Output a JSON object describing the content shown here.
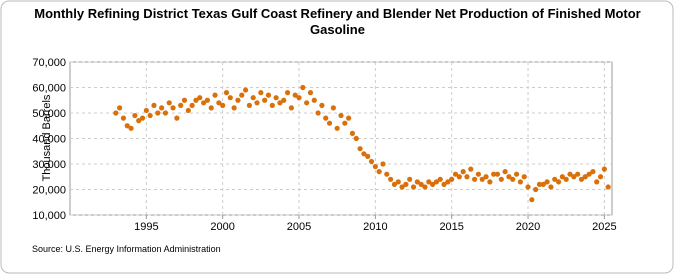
{
  "chart_data": {
    "type": "scatter",
    "title": "Monthly Refining District Texas Gulf Coast Refinery and Blender Net Production of Finished Motor Gasoline",
    "y_label": "Thousand Barrels",
    "source": "Source: U.S. Energy Information Administration",
    "color": "#d9700a",
    "xlim": [
      1990,
      2025.5
    ],
    "xticks": [
      1995,
      2000,
      2005,
      2010,
      2015,
      2020,
      2025
    ],
    "ylim": [
      10000,
      70000
    ],
    "yticks": [
      {
        "value": 10000,
        "label": "10,000"
      },
      {
        "value": 20000,
        "label": "20,000"
      },
      {
        "value": 30000,
        "label": "30,000"
      },
      {
        "value": 40000,
        "label": "40,000"
      },
      {
        "value": 50000,
        "label": "50,000"
      },
      {
        "value": 60000,
        "label": "60,000"
      },
      {
        "value": 70000,
        "label": "70,000"
      }
    ],
    "grid": true,
    "x": [
      1993.0,
      1993.25,
      1993.5,
      1993.75,
      1994.0,
      1994.25,
      1994.5,
      1994.75,
      1995.0,
      1995.25,
      1995.5,
      1995.75,
      1996.0,
      1996.25,
      1996.5,
      1996.75,
      1997.0,
      1997.25,
      1997.5,
      1997.75,
      1998.0,
      1998.25,
      1998.5,
      1998.75,
      1999.0,
      1999.25,
      1999.5,
      1999.75,
      2000.0,
      2000.25,
      2000.5,
      2000.75,
      2001.0,
      2001.25,
      2001.5,
      2001.75,
      2002.0,
      2002.25,
      2002.5,
      2002.75,
      2003.0,
      2003.25,
      2003.5,
      2003.75,
      2004.0,
      2004.25,
      2004.5,
      2004.75,
      2005.0,
      2005.25,
      2005.5,
      2005.75,
      2006.0,
      2006.25,
      2006.5,
      2006.75,
      2007.0,
      2007.25,
      2007.5,
      2007.75,
      2008.0,
      2008.25,
      2008.5,
      2008.75,
      2009.0,
      2009.25,
      2009.5,
      2009.75,
      2010.0,
      2010.25,
      2010.5,
      2010.75,
      2011.0,
      2011.25,
      2011.5,
      2011.75,
      2012.0,
      2012.25,
      2012.5,
      2012.75,
      2013.0,
      2013.25,
      2013.5,
      2013.75,
      2014.0,
      2014.25,
      2014.5,
      2014.75,
      2015.0,
      2015.25,
      2015.5,
      2015.75,
      2016.0,
      2016.25,
      2016.5,
      2016.75,
      2017.0,
      2017.25,
      2017.5,
      2017.75,
      2018.0,
      2018.25,
      2018.5,
      2018.75,
      2019.0,
      2019.25,
      2019.5,
      2019.75,
      2020.0,
      2020.25,
      2020.5,
      2020.75,
      2021.0,
      2021.25,
      2021.5,
      2021.75,
      2022.0,
      2022.25,
      2022.5,
      2022.75,
      2023.0,
      2023.25,
      2023.5,
      2023.75,
      2024.0,
      2024.25,
      2024.5,
      2024.75,
      2025.0,
      2025.25
    ],
    "values": [
      50000,
      52000,
      48000,
      45000,
      44000,
      49000,
      47000,
      48000,
      51000,
      49000,
      53000,
      50000,
      52000,
      50000,
      54000,
      52000,
      48000,
      53000,
      55000,
      51000,
      53000,
      55000,
      56000,
      54000,
      55000,
      52000,
      57000,
      54000,
      53000,
      58000,
      56000,
      52000,
      55000,
      57000,
      59000,
      53000,
      56000,
      54000,
      58000,
      55000,
      57000,
      53000,
      56000,
      54000,
      55000,
      58000,
      52000,
      57000,
      56000,
      60000,
      54000,
      58000,
      55000,
      50000,
      53000,
      48000,
      46000,
      52000,
      44000,
      49000,
      46000,
      48000,
      42000,
      40000,
      36000,
      34000,
      33000,
      31000,
      29000,
      27000,
      30000,
      26000,
      24000,
      22000,
      23000,
      21000,
      22000,
      24000,
      21000,
      23000,
      22000,
      21000,
      23000,
      22000,
      23000,
      24000,
      22000,
      23000,
      24000,
      26000,
      25000,
      27000,
      25000,
      28000,
      24000,
      26000,
      24000,
      25000,
      23000,
      26000,
      26000,
      24000,
      27000,
      25000,
      24000,
      26000,
      23000,
      25000,
      21000,
      16000,
      20000,
      22000,
      22000,
      23000,
      21000,
      24000,
      23000,
      25000,
      24000,
      26000,
      25000,
      26000,
      24000,
      25000,
      26000,
      27000,
      23000,
      25000,
      28000,
      21000
    ]
  }
}
